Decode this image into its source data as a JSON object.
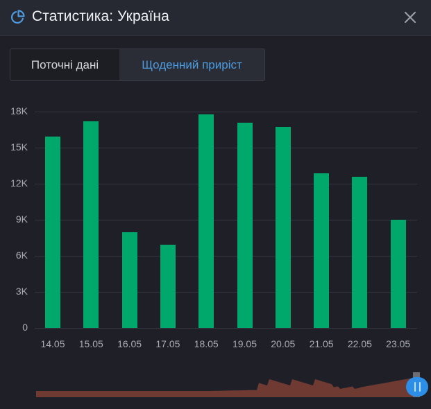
{
  "header": {
    "title": "Статистика: Україна",
    "logo_icon": "pie-chart-icon",
    "close_icon": "close-icon",
    "accent_color": "#4d9be0"
  },
  "tabs": [
    {
      "label": "Поточні дані",
      "active": false
    },
    {
      "label": "Щоденний приріст",
      "active": true
    }
  ],
  "chart_data": {
    "type": "bar",
    "title": "",
    "xlabel": "",
    "ylabel": "",
    "categories": [
      "14.05",
      "15.05",
      "16.05",
      "17.05",
      "18.05",
      "19.05",
      "20.05",
      "21.05",
      "22.05",
      "23.05"
    ],
    "values": [
      15950,
      17200,
      7950,
      6900,
      17750,
      17100,
      16750,
      12850,
      12600,
      9000
    ],
    "y_ticks": [
      "0",
      "3K",
      "6K",
      "9K",
      "12K",
      "15K",
      "18K"
    ],
    "ylim": [
      0,
      18000
    ],
    "grid": true,
    "legend": false,
    "bar_color": "#00a86b"
  },
  "navigator": {
    "series_color": "#6e3a32",
    "handle_color": "#2c8ee6"
  }
}
